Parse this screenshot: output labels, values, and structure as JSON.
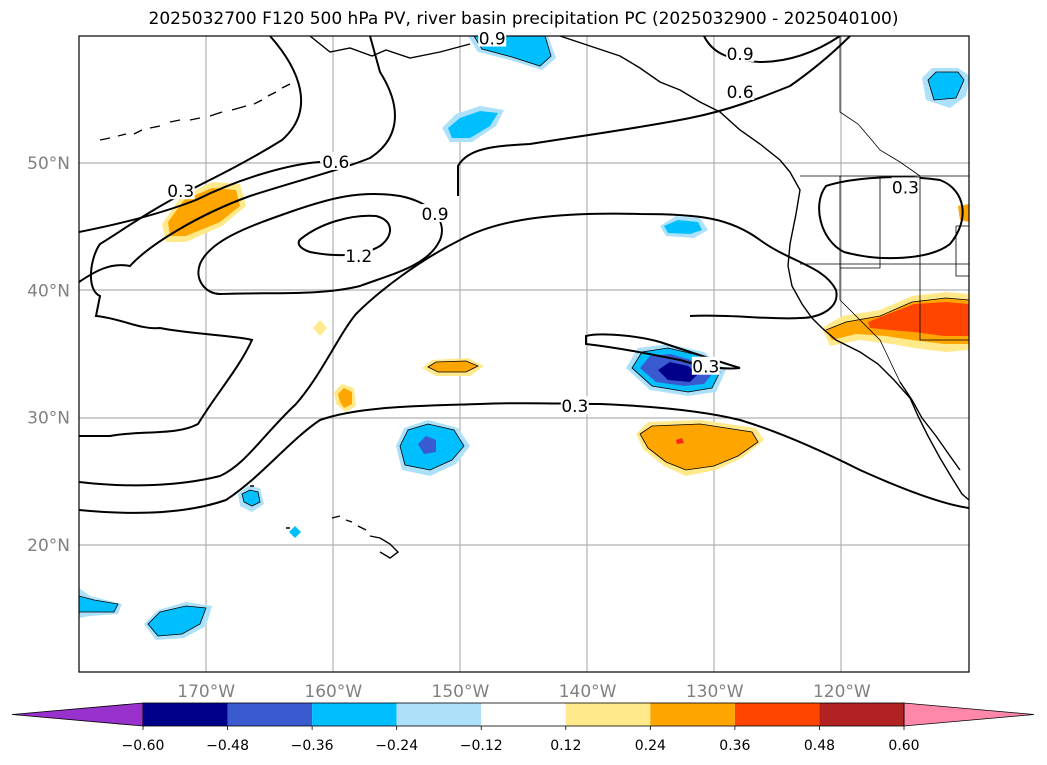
{
  "title": "2025032700 F120 500 hPa PV, river basin precipitation PC (2025032900 - 2025040100)",
  "lat_labels": [
    {
      "value": 50,
      "text": "50°N"
    },
    {
      "value": 40,
      "text": "40°N"
    },
    {
      "value": 30,
      "text": "30°N"
    },
    {
      "value": 20,
      "text": "20°N"
    }
  ],
  "lon_labels": [
    {
      "value": -170,
      "text": "170°W"
    },
    {
      "value": -160,
      "text": "160°W"
    },
    {
      "value": -150,
      "text": "150°W"
    },
    {
      "value": -140,
      "text": "140°W"
    },
    {
      "value": -130,
      "text": "130°W"
    },
    {
      "value": -120,
      "text": "120°W"
    }
  ],
  "extent": {
    "lon_min": -180,
    "lon_max": -110,
    "lat_min": 10,
    "lat_max": 60
  },
  "pv_contour_labels": [
    {
      "text": "0.9",
      "lon": -147.5,
      "lat": 59.8
    },
    {
      "text": "0.9",
      "lon": -128.0,
      "lat": 58.6
    },
    {
      "text": "0.6",
      "lon": -128.0,
      "lat": 55.6
    },
    {
      "text": "0.6",
      "lon": -159.8,
      "lat": 50.1
    },
    {
      "text": "0.3",
      "lon": -172.0,
      "lat": 47.8
    },
    {
      "text": "0.9",
      "lon": -152.0,
      "lat": 46.0
    },
    {
      "text": "1.2",
      "lon": -158.0,
      "lat": 42.7
    },
    {
      "text": "0.3",
      "lon": -130.7,
      "lat": 34.0
    },
    {
      "text": "0.3",
      "lon": -141.0,
      "lat": 30.9
    },
    {
      "text": "0.3",
      "lon": -115.0,
      "lat": 48.1
    }
  ],
  "colorbar": {
    "levels": [
      "−0.60",
      "−0.48",
      "−0.36",
      "−0.24",
      "−0.12",
      "0.12",
      "0.24",
      "0.36",
      "0.48",
      "0.60"
    ],
    "colors": [
      "#9932CC",
      "#00008B",
      "#3A5BD0",
      "#00BFFF",
      "#ADE1FA",
      "#FFFFFF",
      "#FFE98A",
      "#FFA500",
      "#FF4500",
      "#B22222",
      "#FF88AA"
    ]
  },
  "colors": {
    "blue_light": "#ADE1FA",
    "blue": "#00BFFF",
    "blue_mid": "#3A5BD0",
    "blue_dark": "#00008B",
    "yellow": "#FFE98A",
    "orange": "#FFA500",
    "red_orange": "#FF4500",
    "red": "#FF2020",
    "grid": "#B0B0B0"
  }
}
